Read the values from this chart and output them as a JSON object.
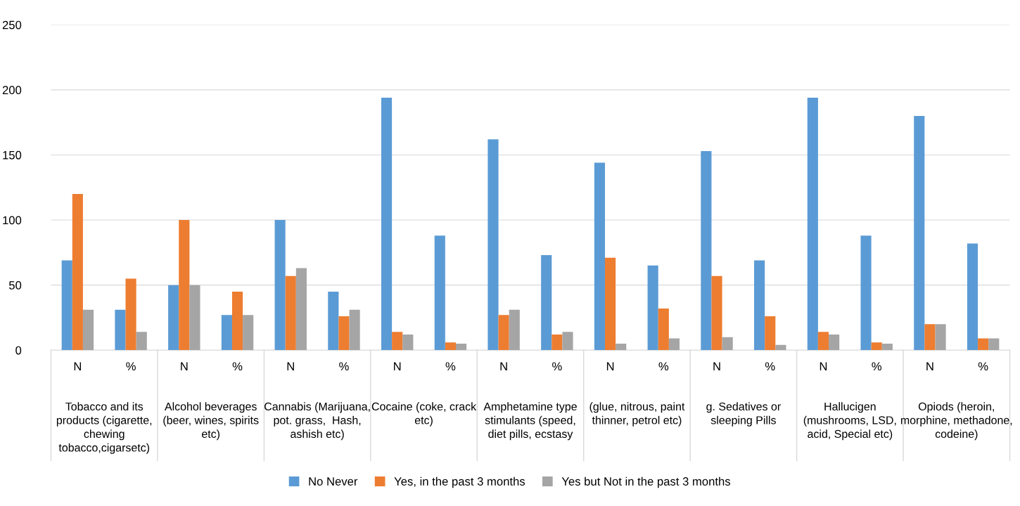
{
  "chart_data": {
    "type": "bar",
    "categories": [
      "N",
      "%",
      "N",
      "%",
      "N",
      "%",
      "N",
      "%",
      "N",
      "%",
      "N",
      "%",
      "N",
      "%",
      "N",
      "%",
      "N",
      "%"
    ],
    "series": [
      {
        "name": "No Never",
        "color": "#5b9bd5",
        "values": [
          69,
          31,
          50,
          27,
          100,
          45,
          194,
          88,
          162,
          73,
          144,
          65,
          153,
          69,
          194,
          88,
          180,
          82
        ]
      },
      {
        "name": "Yes, in the past 3 months",
        "color": "#ed7d31",
        "values": [
          120,
          55,
          100,
          45,
          57,
          26,
          14,
          6,
          27,
          12,
          71,
          32,
          57,
          26,
          14,
          6,
          20,
          9
        ]
      },
      {
        "name": "Yes but Not in the past 3 months",
        "color": "#a5a5a5",
        "values": [
          31,
          14,
          50,
          27,
          63,
          31,
          12,
          5,
          31,
          14,
          5,
          9,
          10,
          4,
          12,
          5,
          20,
          9
        ]
      }
    ],
    "annotations": [
      "Tobacco and its\nproducts (cigarette,\nchewing\ntobacco,cigarsetc)",
      "Alcohol beverages\n(beer, wines, spirits\netc)",
      "Cannabis (Marijuana,\npot. grass,  Hash,\nashish etc)",
      "Cocaine (coke, crack\netc)",
      "Amphetamine type\nstimulants (speed,\ndiet pills, ecstasy",
      "(glue, nitrous, paint\nthinner, petrol etc)",
      "g. Sedatives or\nsleeping Pills",
      "Hallucigen\n(mushrooms, LSD,\nacid, Special etc)",
      "Opiods (heroin,\nmorphine, methadone,\ncodeine)"
    ],
    "ylim": [
      0,
      250
    ],
    "yticks": [
      0,
      50,
      100,
      150,
      200,
      250
    ],
    "grid": "y",
    "legend": "bottom"
  }
}
